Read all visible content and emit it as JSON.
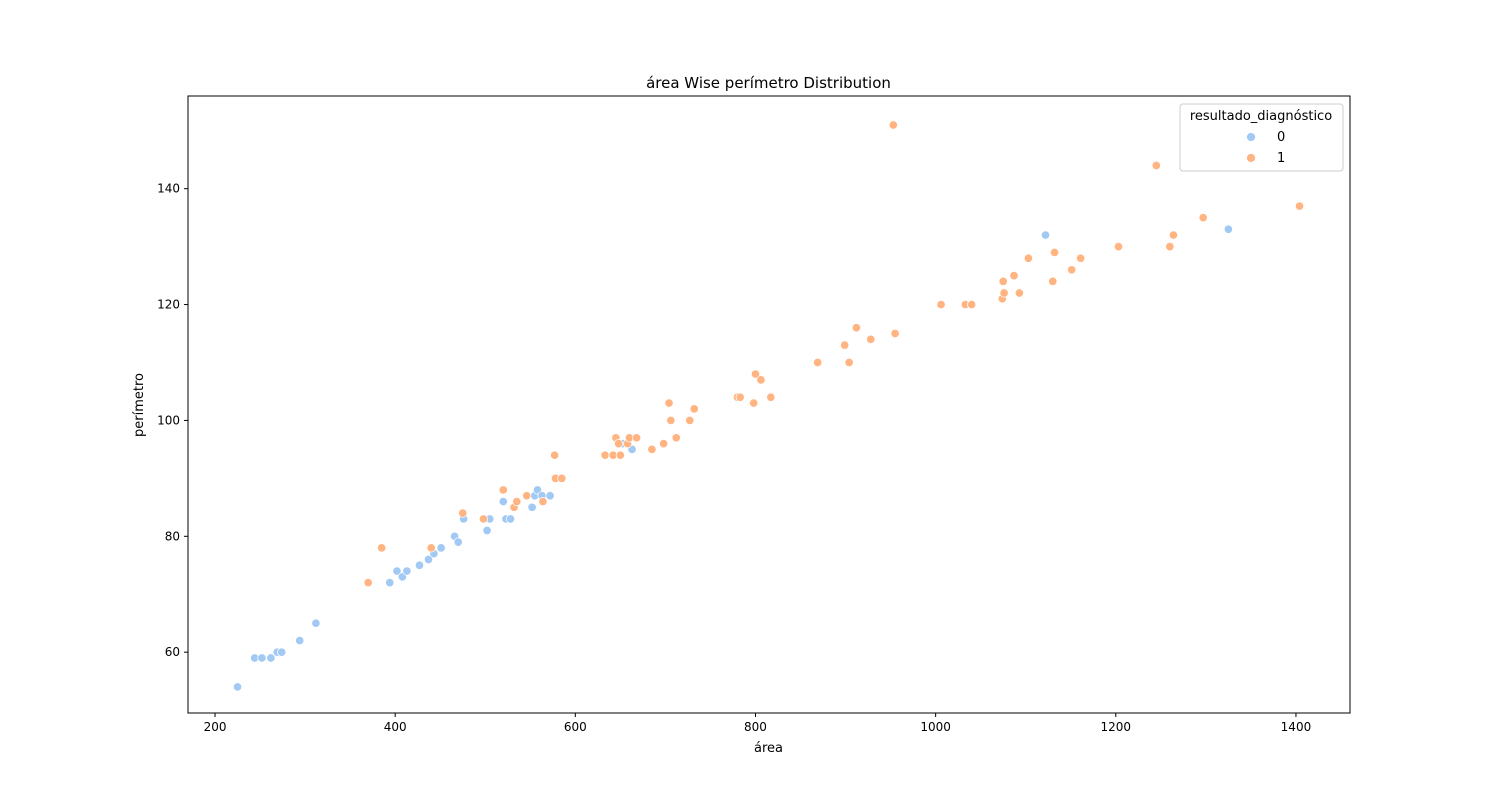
{
  "chart_data": {
    "type": "scatter",
    "title": "área Wise perímetro Distribution",
    "xlabel": "área",
    "ylabel": "perímetro",
    "xlim": [
      170,
      1460
    ],
    "ylim": [
      49.5,
      156
    ],
    "xticks": [
      200,
      400,
      600,
      800,
      1000,
      1200,
      1400
    ],
    "yticks": [
      60,
      80,
      100,
      120,
      140
    ],
    "grid": false,
    "legend": {
      "title": "resultado_diagnóstico",
      "placement": "top-right",
      "entries": [
        {
          "label": "0",
          "color": "#a1c9f4"
        },
        {
          "label": "1",
          "color": "#ffb482"
        }
      ]
    },
    "series": [
      {
        "name": "0",
        "color": "#a1c9f4",
        "points": [
          [
            225,
            54
          ],
          [
            244,
            59
          ],
          [
            252,
            59
          ],
          [
            262,
            59
          ],
          [
            269,
            60
          ],
          [
            274,
            60
          ],
          [
            294,
            62
          ],
          [
            312,
            65
          ],
          [
            394,
            72
          ],
          [
            402,
            74
          ],
          [
            408,
            73
          ],
          [
            413,
            74
          ],
          [
            427,
            75
          ],
          [
            437,
            76
          ],
          [
            443,
            77
          ],
          [
            451,
            78
          ],
          [
            466,
            80
          ],
          [
            470,
            79
          ],
          [
            476,
            83
          ],
          [
            502,
            81
          ],
          [
            505,
            83
          ],
          [
            520,
            86
          ],
          [
            523,
            83
          ],
          [
            528,
            83
          ],
          [
            552,
            85
          ],
          [
            555,
            87
          ],
          [
            558,
            88
          ],
          [
            563,
            87
          ],
          [
            572,
            87
          ],
          [
            652,
            96
          ],
          [
            663,
            95
          ],
          [
            1122,
            132
          ],
          [
            1325,
            133
          ]
        ]
      },
      {
        "name": "1",
        "color": "#ffb482",
        "points": [
          [
            370,
            72
          ],
          [
            385,
            78
          ],
          [
            440,
            78
          ],
          [
            475,
            84
          ],
          [
            498,
            83
          ],
          [
            520,
            88
          ],
          [
            532,
            85
          ],
          [
            535,
            86
          ],
          [
            546,
            87
          ],
          [
            564,
            86
          ],
          [
            577,
            94
          ],
          [
            578,
            90
          ],
          [
            585,
            90
          ],
          [
            633,
            94
          ],
          [
            642,
            94
          ],
          [
            645,
            97
          ],
          [
            648,
            96
          ],
          [
            650,
            94
          ],
          [
            658,
            96
          ],
          [
            660,
            97
          ],
          [
            668,
            97
          ],
          [
            685,
            95
          ],
          [
            698,
            96
          ],
          [
            704,
            103
          ],
          [
            706,
            100
          ],
          [
            712,
            97
          ],
          [
            727,
            100
          ],
          [
            732,
            102
          ],
          [
            780,
            104
          ],
          [
            783,
            104
          ],
          [
            798,
            103
          ],
          [
            800,
            108
          ],
          [
            806,
            107
          ],
          [
            817,
            104
          ],
          [
            869,
            110
          ],
          [
            899,
            113
          ],
          [
            904,
            110
          ],
          [
            912,
            116
          ],
          [
            928,
            114
          ],
          [
            953,
            151
          ],
          [
            955,
            115
          ],
          [
            1006,
            120
          ],
          [
            1033,
            120
          ],
          [
            1040,
            120
          ],
          [
            1074,
            121
          ],
          [
            1075,
            124
          ],
          [
            1076,
            122
          ],
          [
            1087,
            125
          ],
          [
            1093,
            122
          ],
          [
            1103,
            128
          ],
          [
            1130,
            124
          ],
          [
            1132,
            129
          ],
          [
            1151,
            126
          ],
          [
            1161,
            128
          ],
          [
            1203,
            130
          ],
          [
            1245,
            144
          ],
          [
            1260,
            130
          ],
          [
            1264,
            132
          ],
          [
            1297,
            135
          ],
          [
            1404,
            137
          ]
        ]
      }
    ]
  }
}
